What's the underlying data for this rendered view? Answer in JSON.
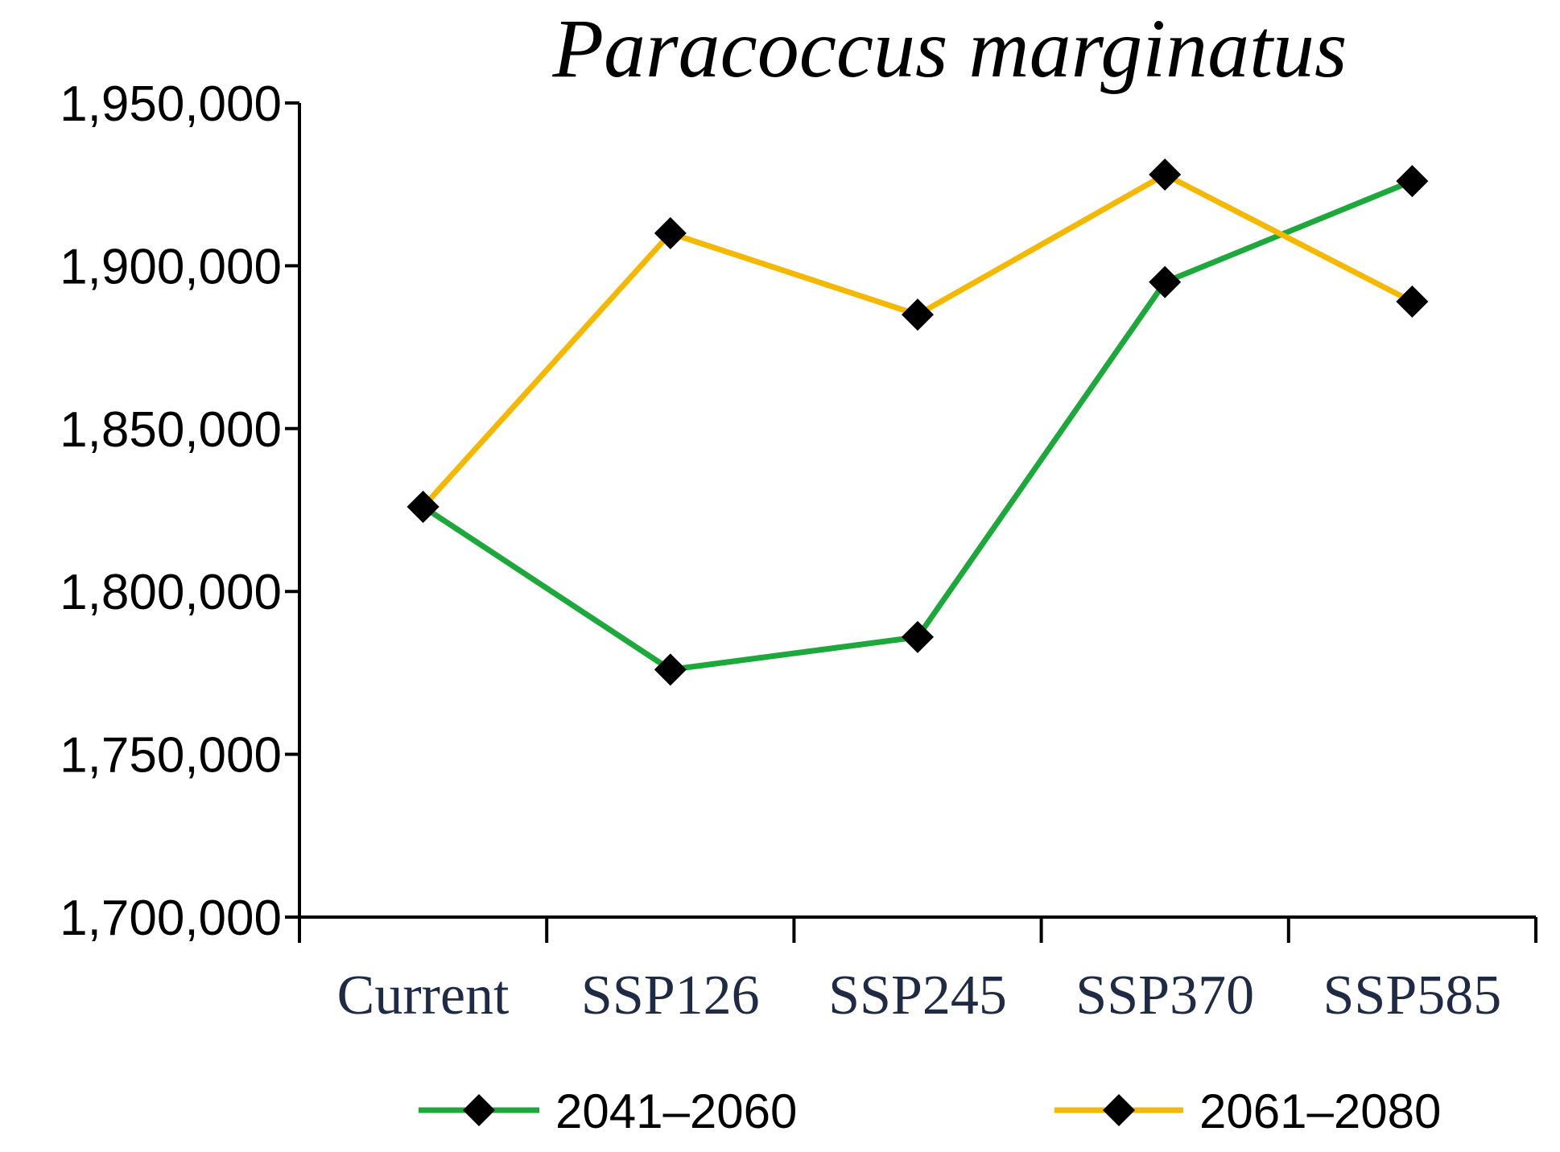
{
  "chart_data": {
    "type": "line",
    "title": "Paracoccus marginatus",
    "xlabel": "",
    "ylabel": "",
    "categories": [
      "Current",
      "SSP126",
      "SSP245",
      "SSP370",
      "SSP585"
    ],
    "ylim": [
      1700000,
      1950000
    ],
    "yticks": [
      1700000,
      1750000,
      1800000,
      1850000,
      1900000,
      1950000
    ],
    "ytick_labels": [
      "1,700,000",
      "1,750,000",
      "1,800,000",
      "1,850,000",
      "1,900,000",
      "1,950,000"
    ],
    "grid": false,
    "legend_position": "bottom",
    "marker": "diamond",
    "marker_color": "#000000",
    "series": [
      {
        "name": "2041–2060",
        "color": "#1ca83a",
        "values": [
          1826000,
          1776000,
          1786000,
          1895000,
          1926000
        ]
      },
      {
        "name": "2061–2080",
        "color": "#f5b800",
        "values": [
          1826000,
          1910000,
          1885000,
          1928000,
          1889000
        ]
      }
    ]
  }
}
